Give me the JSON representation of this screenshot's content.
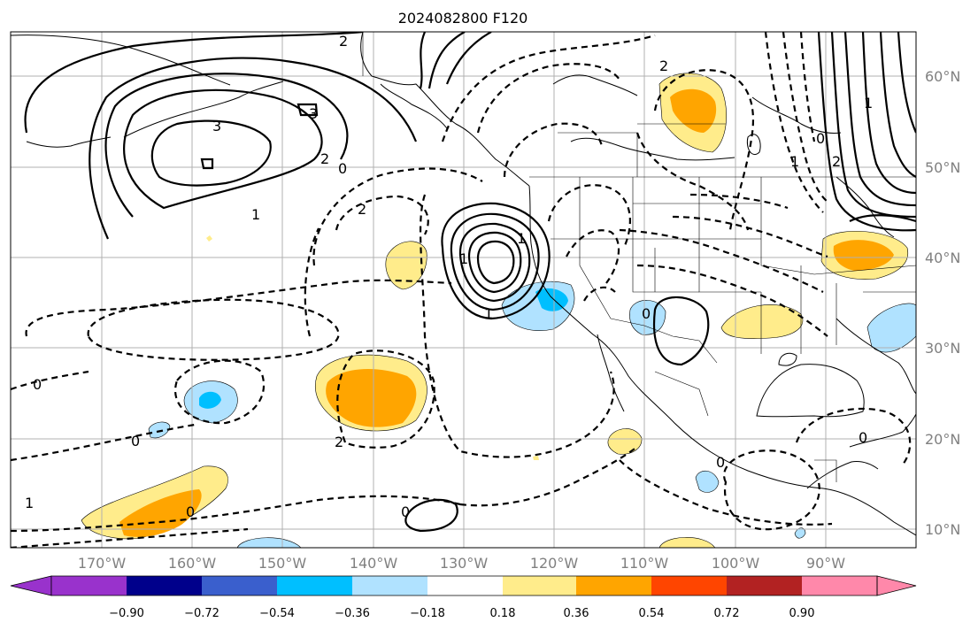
{
  "title": "2024082800 F120",
  "lat_labels": [
    {
      "text": "60°N",
      "lat": 60
    },
    {
      "text": "50°N",
      "lat": 50
    },
    {
      "text": "40°N",
      "lat": 40
    },
    {
      "text": "30°N",
      "lat": 30
    },
    {
      "text": "20°N",
      "lat": 20
    },
    {
      "text": "10°N",
      "lat": 10
    }
  ],
  "lon_labels": [
    {
      "text": "170°W",
      "lon": -170
    },
    {
      "text": "160°W",
      "lon": -160
    },
    {
      "text": "150°W",
      "lon": -150
    },
    {
      "text": "140°W",
      "lon": -140
    },
    {
      "text": "130°W",
      "lon": -130
    },
    {
      "text": "120°W",
      "lon": -120
    },
    {
      "text": "110°W",
      "lon": -110
    },
    {
      "text": "100°W",
      "lon": -100
    },
    {
      "text": "90°W",
      "lon": -90
    }
  ],
  "colorbar": {
    "ticks": [
      "−0.90",
      "−0.72",
      "−0.54",
      "−0.36",
      "−0.18",
      "0.18",
      "0.36",
      "0.54",
      "0.72",
      "0.90"
    ],
    "colors": [
      "#9932cc",
      "#00008b",
      "#3a5fcd",
      "#00bfff",
      "#b0e2ff",
      "#ffffff",
      "#ffec8b",
      "#ffa500",
      "#ff4500",
      "#b22222",
      "#ff88aa"
    ]
  },
  "contour_labels": [
    "2",
    "3",
    "3",
    "2",
    "0",
    "1",
    "2",
    "0",
    "1",
    "1",
    "1",
    "2",
    "0",
    "2",
    "0",
    "2",
    "1",
    "1",
    "0",
    "0",
    "0",
    "1",
    "0",
    "0"
  ],
  "map": {
    "extent": {
      "lon_min": -179,
      "lon_max": -79,
      "lat_min": 8,
      "lat_max": 65
    },
    "fill_colors": {
      "light_yellow": "#ffec8b",
      "orange": "#ffa500",
      "light_blue": "#b0e2ff",
      "deep_sky_blue": "#00bfff"
    }
  }
}
